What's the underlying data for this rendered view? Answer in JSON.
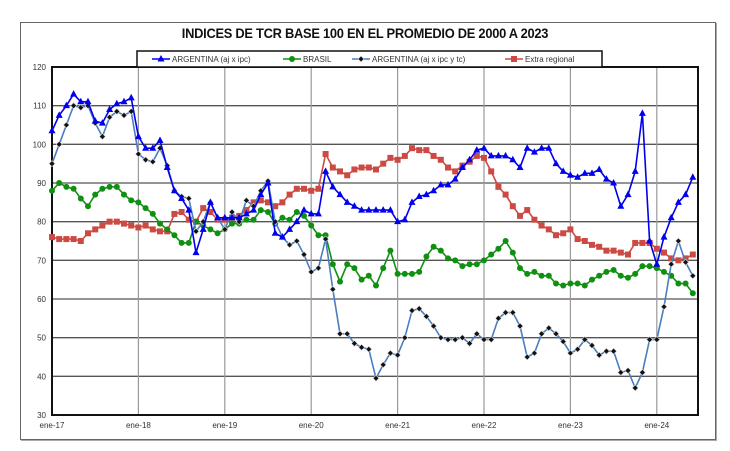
{
  "chart_data": {
    "type": "line",
    "title": "INDICES DE TCR BASE 100 EN EL PROMEDIO DE 2000 A 2023",
    "xlabel": "",
    "ylabel": "",
    "x_start": "ene-17",
    "x_frequency": "monthly",
    "x_tick_labels": [
      "ene-17",
      "ene-18",
      "ene-19",
      "ene-20",
      "ene-21",
      "ene-22",
      "ene-23",
      "ene-24"
    ],
    "y_ticks": [
      30,
      40,
      50,
      60,
      70,
      80,
      90,
      100,
      110,
      120
    ],
    "ylim": [
      30,
      120
    ],
    "grid": true,
    "legend_position": "top",
    "series": [
      {
        "name": "ARGENTINA (aj x ipc)",
        "color": "#0000ee",
        "marker": "triangle",
        "values": [
          103.5,
          107.5,
          110,
          113,
          111,
          111,
          106,
          105.5,
          109,
          110.5,
          111,
          112,
          102,
          99,
          99,
          101,
          94,
          88,
          86,
          83,
          72,
          78,
          85,
          81,
          81,
          81,
          81,
          82,
          83,
          87,
          90,
          77,
          76,
          78,
          80,
          83,
          82,
          82,
          93,
          89,
          87,
          85,
          84,
          83,
          83,
          83,
          83,
          83,
          80,
          80.5,
          85,
          86.5,
          87,
          88,
          89.5,
          89.5,
          91,
          94,
          96,
          98.5,
          99,
          97,
          97,
          97,
          96,
          94,
          99,
          98,
          99,
          99,
          95,
          93,
          92,
          91.5,
          92.5,
          92.5,
          93.5,
          91,
          90,
          84,
          87,
          93,
          108,
          75,
          69,
          76,
          81,
          85,
          87,
          91.5
        ]
      },
      {
        "name": "BRASIL",
        "color": "#109010",
        "marker": "circle",
        "values": [
          88,
          90,
          89,
          88.5,
          86,
          84,
          87,
          88.5,
          89,
          89,
          87,
          85.5,
          85,
          83.5,
          82,
          79.5,
          78,
          76.5,
          74.5,
          74.5,
          80,
          79,
          78,
          77,
          78,
          79.5,
          79.5,
          80.5,
          80.5,
          83,
          82.5,
          79.5,
          81,
          80.5,
          82.5,
          81.5,
          79,
          76.5,
          76.5,
          69,
          64.5,
          69,
          68,
          65,
          66,
          63.5,
          68,
          72.5,
          66.5,
          66.5,
          66.5,
          67,
          71,
          73.5,
          72.5,
          70.5,
          70,
          68.5,
          69,
          69,
          70,
          71.5,
          73,
          75,
          72,
          68,
          66.5,
          67,
          66,
          66,
          64,
          63.5,
          64,
          64,
          63.5,
          65,
          66,
          67,
          67.5,
          66,
          65.5,
          66.5,
          68.5,
          68.5,
          68,
          67,
          66,
          64,
          64,
          61.5
        ]
      },
      {
        "name": "ARGENTINA (aj x ipc y tc)",
        "color": "#4a7ec0",
        "marker": "diamond",
        "values": [
          95,
          100,
          105,
          110,
          109.5,
          110,
          105.5,
          102,
          107,
          108.5,
          107.5,
          108.5,
          97.5,
          96,
          95.5,
          99,
          94.5,
          88,
          86.5,
          86,
          77.5,
          80,
          85,
          81,
          78,
          82.5,
          80,
          85.5,
          84,
          88,
          90.5,
          80,
          76,
          74,
          75,
          71.5,
          67,
          68,
          75.5,
          62.5,
          51,
          51,
          48.5,
          47.5,
          47,
          39.5,
          43,
          46,
          45.5,
          50,
          57,
          57.5,
          55.5,
          53,
          50,
          49.5,
          49.5,
          50,
          48.5,
          51,
          49.5,
          49.5,
          55,
          56.5,
          56.5,
          53,
          45,
          46,
          51,
          52.5,
          51,
          49,
          46,
          47,
          49.5,
          48,
          45.5,
          46.5,
          46.5,
          41,
          41.5,
          37,
          41,
          49.5,
          49.5,
          58,
          69,
          75,
          69.5,
          66
        ]
      },
      {
        "name": "Extra regional",
        "color": "#cc4a44",
        "marker": "square",
        "values": [
          76,
          75.5,
          75.5,
          75.5,
          75,
          77,
          78,
          79,
          80,
          80,
          79.5,
          79,
          78.5,
          79,
          78,
          77.5,
          77.5,
          82,
          82.5,
          80.5,
          80,
          83.5,
          82.5,
          80.5,
          80.5,
          81,
          81.5,
          83,
          85,
          85.5,
          85,
          84,
          85,
          87,
          88.5,
          88.5,
          88,
          88.5,
          97.5,
          94,
          93,
          92,
          93.5,
          94,
          94,
          93.5,
          95,
          96.5,
          96,
          97,
          99,
          98.5,
          98.5,
          97,
          96,
          94,
          93,
          94.5,
          95.5,
          97,
          96.5,
          93,
          89,
          87,
          84,
          81.5,
          83,
          80.5,
          79,
          78,
          76.5,
          77,
          78,
          75.5,
          75,
          74,
          73.5,
          72.5,
          72.5,
          72,
          71.5,
          74.5,
          74.5,
          74.5,
          73,
          72,
          70.5,
          70,
          70.5,
          71.5
        ]
      }
    ]
  }
}
